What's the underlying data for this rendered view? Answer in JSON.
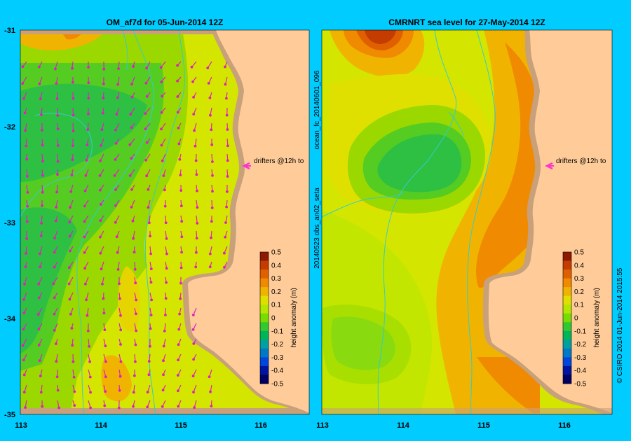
{
  "left_panel": {
    "title": "OM_af7d for 05-Jun-2014 12Z",
    "drifter_label": "drifters @12h to"
  },
  "right_panel": {
    "title": "CMRNRT sea level  for 27-May-2014 12Z",
    "drifter_label": "drifters @12h to"
  },
  "axes": {
    "lat_ticks": [
      "-31",
      "-32",
      "-33",
      "-34",
      "-35"
    ],
    "lon_ticks": [
      "113",
      "114",
      "115",
      "116"
    ]
  },
  "colorbar": {
    "label": "height anomaly (m)",
    "ticks": [
      "0.5",
      "0.4",
      "0.3",
      "0.2",
      "0.1",
      "0",
      "-0.1",
      "-0.2",
      "-0.3",
      "-0.4",
      "-0.5"
    ],
    "colors": [
      "#8b1a00",
      "#c43c00",
      "#e06000",
      "#f08a00",
      "#f0b400",
      "#e0e000",
      "#b4e600",
      "#78dc00",
      "#32c832",
      "#00b45a",
      "#00a0a0",
      "#0078c8",
      "#0046dc",
      "#0014a0",
      "#000064"
    ]
  },
  "side_labels": {
    "run_id": "ocean_fc_20140601_096",
    "obs_id": "20140523 obs_an02_seta",
    "credit": "© CSIRO 2014   01-Jun-2014 2015:55"
  },
  "colors": {
    "background": "#00ccff",
    "land": "#ffcc99",
    "shelf": "#c8a07a",
    "drifter": "#ff33cc",
    "arrow": "#dd22bb",
    "contour": "#33cccc"
  }
}
